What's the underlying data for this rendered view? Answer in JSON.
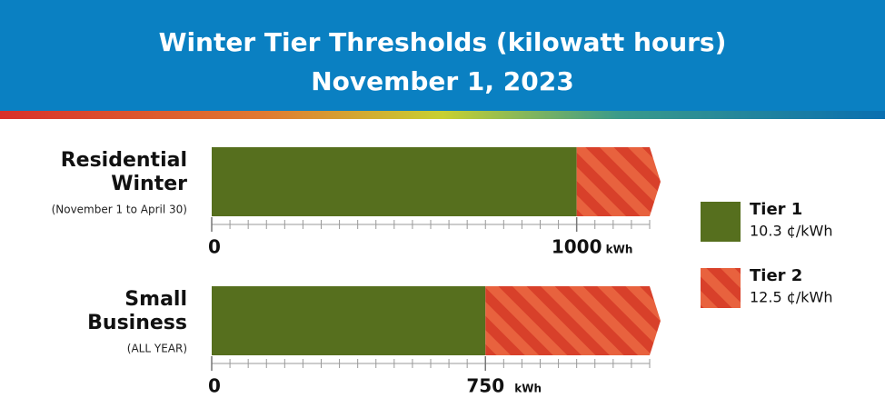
{
  "header": {
    "title_lines": [
      "Winter Tier Thresholds (kilowatt hours)",
      "November 1, 2023"
    ]
  },
  "chart_data": [
    {
      "type": "stacked-bar",
      "title_lines": [
        "Residential",
        "Winter"
      ],
      "subtitle": "(November 1 to April 30)",
      "series": [
        {
          "name": "Tier 1",
          "rate": "10.3 ¢/kWh",
          "color": "#566f1e",
          "values": [
            1000
          ]
        },
        {
          "name": "Tier 2",
          "rate": "12.5 ¢/kWh",
          "color": "#d8402a",
          "values": [
            200
          ]
        }
      ],
      "xlim": [
        0,
        1200
      ],
      "xticks": [
        0,
        1000
      ],
      "x_unit": "kWh",
      "minor_xticks": [
        50,
        100,
        150,
        200,
        250,
        300,
        350,
        400,
        450,
        500,
        550,
        600,
        650,
        700,
        750,
        800,
        850,
        900,
        950,
        1050,
        1100,
        1150,
        1200
      ]
    },
    {
      "type": "stacked-bar",
      "title_lines": [
        "Small",
        "Business"
      ],
      "subtitle": "(ALL YEAR)",
      "series": [
        {
          "values": [
            750
          ]
        },
        {
          "values": [
            450
          ]
        }
      ],
      "xlim": [
        0,
        1200
      ],
      "xticks": [
        0,
        750
      ],
      "x_unit": "kWh",
      "minor_xticks": [
        50,
        100,
        150,
        200,
        250,
        300,
        350,
        400,
        450,
        500,
        550,
        600,
        650,
        700,
        800,
        850,
        900,
        950,
        1000,
        1050,
        1100,
        1150,
        1200
      ]
    }
  ]
}
